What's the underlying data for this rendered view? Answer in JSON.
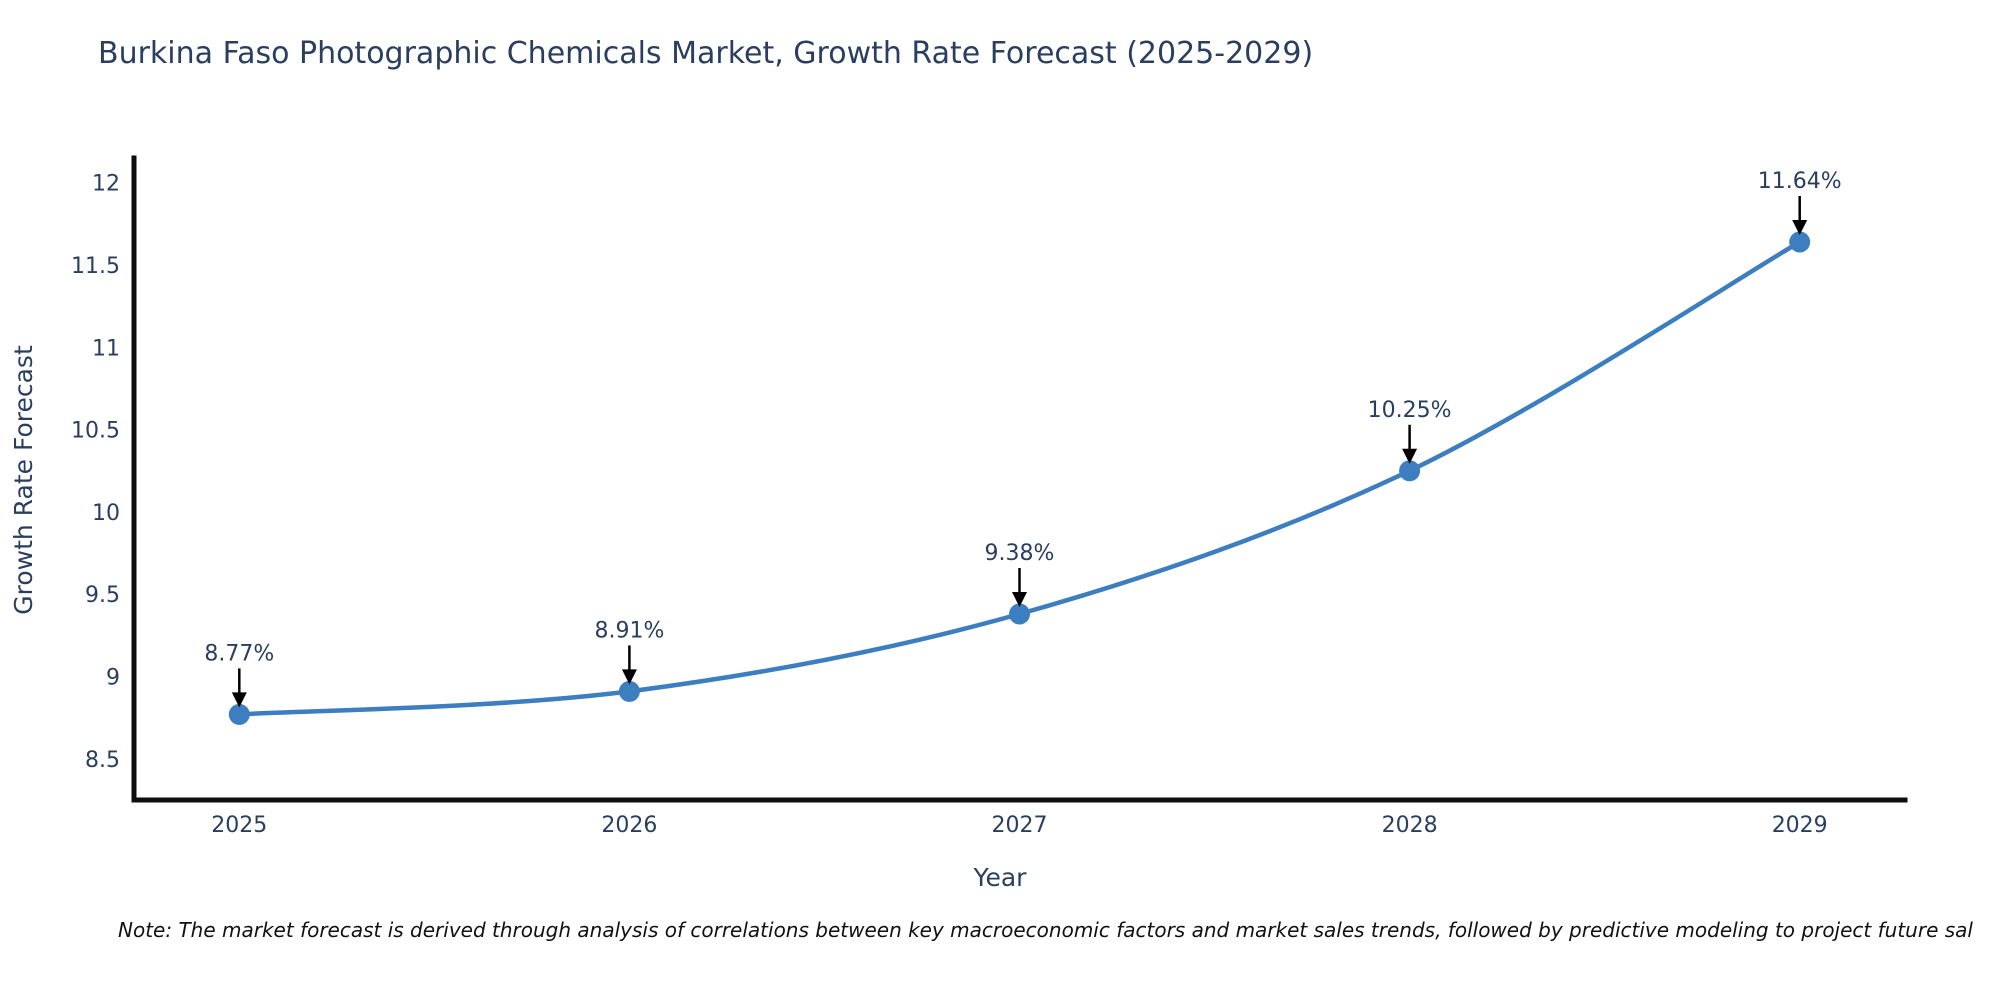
{
  "page": {
    "background": "#ffffff"
  },
  "chart_data": {
    "type": "line",
    "title": "Burkina Faso Photographic Chemicals Market, Growth Rate Forecast (2025-2029)",
    "xlabel": "Year",
    "ylabel": "Growth Rate Forecast",
    "x": [
      2025,
      2026,
      2027,
      2028,
      2029
    ],
    "series": [
      {
        "name": "Growth Rate Forecast",
        "values": [
          8.77,
          8.91,
          9.38,
          10.25,
          11.64
        ],
        "point_labels": [
          "8.77%",
          "8.91%",
          "9.38%",
          "10.25%",
          "11.64%"
        ]
      }
    ],
    "x_tick_labels": [
      "2025",
      "2026",
      "2027",
      "2028",
      "2029"
    ],
    "y_ticks": [
      8.5,
      9,
      9.5,
      10,
      10.5,
      11,
      11.5,
      12
    ],
    "y_tick_labels": [
      "8.5",
      "9",
      "9.5",
      "10",
      "10.5",
      "11",
      "11.5",
      "12"
    ],
    "xlim": [
      2024.73,
      2029.27
    ],
    "ylim": [
      8.25,
      12.15
    ],
    "grid": false,
    "legend": "none",
    "line_smooth": true,
    "marker": "circle",
    "annotations_have_arrows": true,
    "colors": {
      "line": "#3c7ebf",
      "marker": "#3c7ebf",
      "axis_text": "#2a3f5f",
      "annotation_text": "#2a3f5f",
      "arrow": "#000000",
      "spine": "#0d0d0d",
      "background": "#ffffff"
    }
  },
  "note": "Note: The market forecast is derived through analysis of correlations between key macroeconomic factors and market sales trends, followed by predictive modeling to project future sal"
}
